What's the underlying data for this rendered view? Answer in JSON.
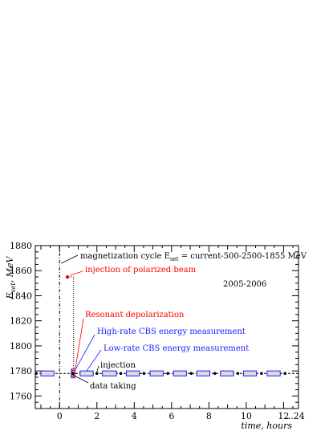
{
  "chart_data": {
    "type": "scatter",
    "year_label": "2005-2006",
    "xlabel": "time, hours",
    "ylabel_main": "E",
    "ylabel_sub": "set",
    "ylabel_unit": ", MeV",
    "xlim": [
      -1.3,
      12.8
    ],
    "ylim": [
      1750,
      1880
    ],
    "xticks": [
      0,
      2,
      4,
      6,
      8,
      10,
      12
    ],
    "xtick_extra": "...24",
    "yticks": [
      1760,
      1780,
      1800,
      1820,
      1840,
      1860,
      1880
    ],
    "baseline_energy": 1778,
    "magnetization_cycle_x": 0,
    "injection_polarized": {
      "x": 0.42,
      "y": 1855
    },
    "depolarization_x": 0.75,
    "data_taking_dots_x": [
      -1.25,
      0.72,
      2.0,
      3.28,
      4.52,
      5.8,
      7.05,
      8.32,
      9.55,
      10.82,
      12.08
    ],
    "low_rate_boxes_x": [
      [
        -1.0,
        -0.3
      ],
      [
        1.1,
        1.8
      ],
      [
        2.3,
        3.05
      ],
      [
        3.58,
        4.28
      ],
      [
        4.85,
        5.55
      ],
      [
        6.1,
        6.8
      ],
      [
        7.35,
        8.05
      ],
      [
        8.62,
        9.32
      ],
      [
        9.85,
        10.55
      ],
      [
        11.12,
        11.82
      ]
    ],
    "high_rate_box": {
      "x": [
        0.63,
        0.82
      ],
      "y": [
        1774.5,
        1781.5
      ]
    },
    "annotations": {
      "magnetization_prefix": "magnetization cycle E",
      "magnetization_sub": "set",
      "magnetization_suffix": " = current-500-2500-1855 MeV",
      "injection_polarized": "injection of polarized beam",
      "resonant": "Resonant depolarization",
      "high_rate": "High-rate CBS energy measurement",
      "low_rate": "Low-rate CBS energy measurement",
      "injection": "injection",
      "data_taking": "data taking"
    },
    "colors": {
      "axis": "#000000",
      "red": "#ff0000",
      "blue": "#1a1aff",
      "box_fill": "#dcdcdc"
    }
  }
}
